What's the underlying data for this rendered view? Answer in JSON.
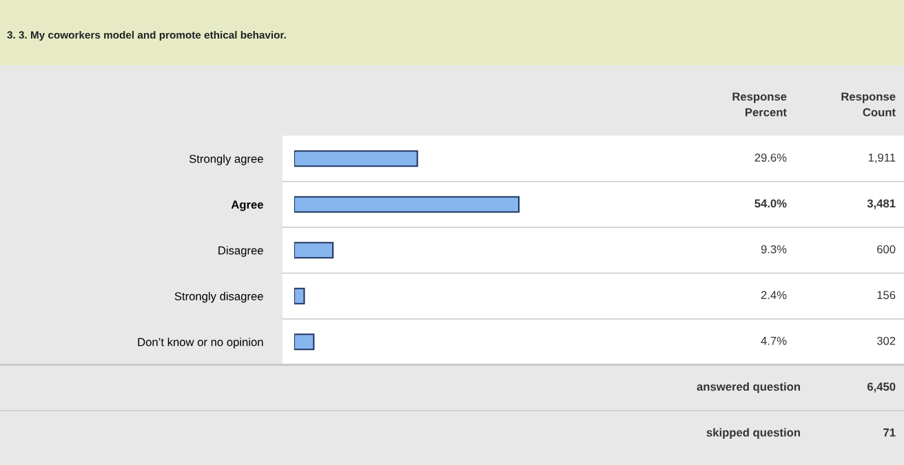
{
  "chart_data": {
    "type": "bar",
    "orientation": "horizontal",
    "title": "3. 3. My coworkers model and promote ethical behavior.",
    "categories": [
      "Strongly agree",
      "Agree",
      "Disagree",
      "Strongly disagree",
      "Don’t know or no opinion"
    ],
    "values": [
      29.6,
      54.0,
      9.3,
      2.4,
      4.7
    ],
    "value_labels": [
      "29.6%",
      "54.0%",
      "9.3%",
      "2.4%",
      "4.7%"
    ],
    "color": "#86b6ee",
    "annotations": [
      "Response\nPercent",
      "Response\nCount",
      "1,911",
      "3,481",
      "600",
      "156",
      "302",
      "answered question",
      "6,450",
      "skipped question",
      "71"
    ]
  }
}
